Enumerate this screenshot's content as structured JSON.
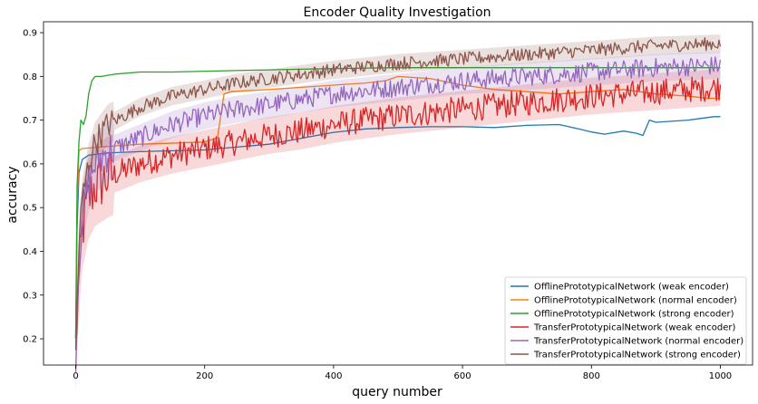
{
  "chart_data": {
    "type": "line",
    "title": "Encoder Quality Investigation",
    "xlabel": "query number",
    "ylabel": "accuracy",
    "xlim": [
      -50,
      1050
    ],
    "ylim": [
      0.14,
      0.925
    ],
    "xticks": [
      0,
      200,
      400,
      600,
      800,
      1000
    ],
    "yticks": [
      0.2,
      0.3,
      0.4,
      0.5,
      0.6,
      0.7,
      0.8,
      0.9
    ],
    "xtick_labels": [
      "0",
      "200",
      "400",
      "600",
      "800",
      "1000"
    ],
    "ytick_labels": [
      "0.2",
      "0.3",
      "0.4",
      "0.5",
      "0.6",
      "0.7",
      "0.8",
      "0.9"
    ],
    "grid": false,
    "legend_position": "lower-right",
    "series": [
      {
        "name": "OfflinePrototypicalNetwork (weak encoder)",
        "color": "#1f77b4",
        "noise": 0.0,
        "x": [
          0,
          2,
          5,
          10,
          20,
          50,
          100,
          200,
          300,
          400,
          450,
          500,
          550,
          600,
          650,
          700,
          750,
          780,
          800,
          820,
          850,
          870,
          880,
          890,
          900,
          950,
          990,
          1000
        ],
        "y": [
          0.2,
          0.45,
          0.58,
          0.61,
          0.62,
          0.625,
          0.628,
          0.632,
          0.645,
          0.672,
          0.68,
          0.683,
          0.685,
          0.685,
          0.683,
          0.688,
          0.69,
          0.68,
          0.673,
          0.668,
          0.675,
          0.67,
          0.665,
          0.7,
          0.695,
          0.7,
          0.708,
          0.708
        ]
      },
      {
        "name": "OfflinePrototypicalNetwork (normal encoder)",
        "color": "#ff7f0e",
        "noise": 0.0,
        "x": [
          0,
          2,
          5,
          10,
          50,
          100,
          200,
          220,
          230,
          240,
          300,
          350,
          400,
          450,
          480,
          500,
          550,
          600,
          650,
          700,
          750,
          800,
          850,
          900,
          950,
          980,
          1000
        ],
        "y": [
          0.2,
          0.5,
          0.63,
          0.635,
          0.64,
          0.645,
          0.65,
          0.66,
          0.76,
          0.765,
          0.77,
          0.775,
          0.78,
          0.785,
          0.79,
          0.8,
          0.795,
          0.78,
          0.77,
          0.765,
          0.76,
          0.765,
          0.77,
          0.76,
          0.755,
          0.75,
          0.75
        ]
      },
      {
        "name": "OfflinePrototypicalNetwork (strong encoder)",
        "color": "#2ca02c",
        "noise": 0.0,
        "x": [
          0,
          2,
          5,
          8,
          12,
          16,
          20,
          25,
          30,
          40,
          60,
          100,
          150,
          200,
          300,
          400,
          500,
          600,
          700,
          800,
          900,
          1000
        ],
        "y": [
          0.2,
          0.55,
          0.65,
          0.7,
          0.69,
          0.71,
          0.76,
          0.79,
          0.8,
          0.8,
          0.805,
          0.81,
          0.81,
          0.812,
          0.815,
          0.818,
          0.82,
          0.82,
          0.82,
          0.82,
          0.82,
          0.82
        ]
      },
      {
        "name": "TransferPrototypicalNetwork (weak encoder)",
        "color": "#d62728",
        "noise": 0.03,
        "x": [
          0,
          5,
          10,
          20,
          30,
          50,
          100,
          150,
          200,
          250,
          300,
          350,
          400,
          500,
          600,
          700,
          800,
          900,
          1000
        ],
        "y": [
          0.17,
          0.35,
          0.45,
          0.52,
          0.55,
          0.57,
          0.6,
          0.62,
          0.635,
          0.65,
          0.665,
          0.675,
          0.69,
          0.71,
          0.725,
          0.74,
          0.755,
          0.765,
          0.775
        ]
      },
      {
        "name": "TransferPrototypicalNetwork (normal encoder)",
        "color": "#9467bd",
        "noise": 0.022,
        "x": [
          0,
          5,
          10,
          20,
          30,
          50,
          100,
          150,
          200,
          250,
          300,
          400,
          500,
          600,
          700,
          800,
          900,
          1000
        ],
        "y": [
          0.17,
          0.38,
          0.48,
          0.56,
          0.6,
          0.63,
          0.66,
          0.69,
          0.71,
          0.725,
          0.735,
          0.76,
          0.775,
          0.79,
          0.8,
          0.81,
          0.82,
          0.825
        ]
      },
      {
        "name": "TransferPrototypicalNetwork (strong encoder)",
        "color": "#8c564b",
        "noise": 0.015,
        "x": [
          0,
          5,
          10,
          20,
          30,
          50,
          100,
          150,
          200,
          250,
          300,
          400,
          500,
          600,
          700,
          800,
          900,
          1000
        ],
        "y": [
          0.17,
          0.42,
          0.52,
          0.6,
          0.65,
          0.69,
          0.73,
          0.755,
          0.77,
          0.785,
          0.795,
          0.815,
          0.83,
          0.84,
          0.85,
          0.86,
          0.87,
          0.875
        ]
      }
    ]
  }
}
